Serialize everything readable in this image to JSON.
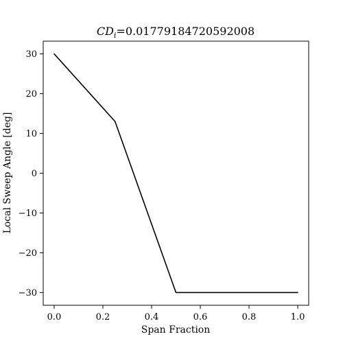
{
  "chart_data": {
    "type": "line",
    "title": {
      "prefix": "CD",
      "subscript": "i",
      "equals_value": "=0.01779184720592008"
    },
    "xlabel": "Span Fraction",
    "ylabel": "Local Sweep Angle [deg]",
    "xlim": [
      -0.045,
      1.045
    ],
    "ylim": [
      -33.2,
      33.2
    ],
    "xticks": [
      0.0,
      0.2,
      0.4,
      0.6,
      0.8,
      1.0
    ],
    "xtick_labels": [
      "0.0",
      "0.2",
      "0.4",
      "0.6",
      "0.8",
      "1.0"
    ],
    "yticks": [
      30,
      20,
      10,
      0,
      -10,
      -20,
      -30
    ],
    "ytick_labels": [
      "30",
      "20",
      "10",
      "0",
      "−10",
      "−20",
      "−30"
    ],
    "grid": false,
    "series": [
      {
        "color": "#000000",
        "x": [
          0.0,
          0.25,
          0.5,
          1.0
        ],
        "y": [
          30,
          13,
          -30,
          -30
        ]
      }
    ]
  }
}
